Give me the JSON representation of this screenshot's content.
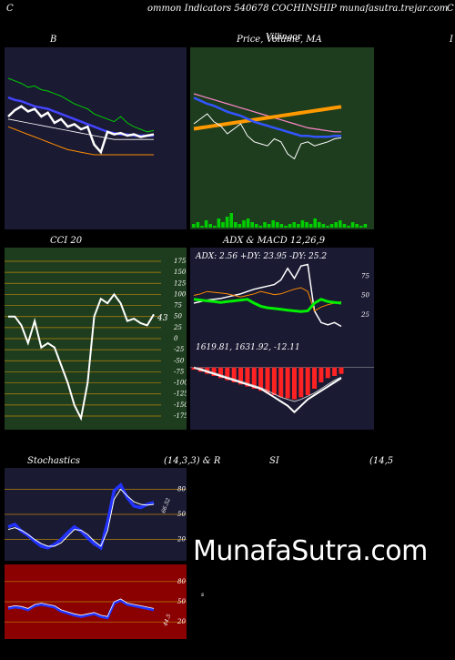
{
  "header": {
    "left": "C",
    "center": "ommon  Indicators 540678  COCHINSHIP munafasutra.trejar.com",
    "right": "C"
  },
  "panels": {
    "bb_title": "B",
    "price_title": "Price,  Volume, MA",
    "price_title_overlay": "Villingor",
    "right_edge": "I",
    "cci_title": "CCI 20",
    "adx_title": "ADX  & MACD 12,26,9",
    "adx_values": "ADX: 2.56   +DY: 23.95 -DY: 25.2",
    "macd_values": "1619.81,   1631.92,   -12.11",
    "stoch_title": "Stochastics",
    "stoch_params": "(14,3,3) & R",
    "rsi_title": "SI",
    "rsi_params": "(14,5",
    "stoch_value": "66.52",
    "rsi_value": "44.5",
    "cci_value": "43",
    "watermark": "MunafaSutra.com",
    "small_marker": "s"
  },
  "colors": {
    "bb_bg": "#1a1a33",
    "price_bg": "#1e3d1e",
    "cci_bg": "#1e3d1e",
    "adx_bg": "#1a1a33",
    "stoch_bg": "#1a1a33",
    "rsi_bg": "#8b0000",
    "gridline": "#b8860b"
  },
  "chart_data": [
    {
      "type": "line",
      "name": "bollinger",
      "title": "B",
      "series": [
        {
          "values": [
            60,
            58,
            56,
            53,
            54,
            51,
            50,
            48,
            46,
            43,
            40,
            38,
            36,
            32,
            30,
            28,
            26,
            30,
            25,
            22,
            20,
            18,
            19
          ]
        },
        {
          "values": [
            45,
            43,
            42,
            40,
            38,
            37,
            36,
            34,
            32,
            30,
            28,
            26,
            24,
            22,
            20,
            18,
            17,
            16,
            16,
            15,
            15,
            15,
            15
          ]
        },
        {
          "values": [
            28,
            27,
            26,
            25,
            24,
            23,
            22,
            21,
            20,
            19,
            18,
            17,
            16,
            15,
            14,
            13,
            12,
            12,
            12,
            12,
            12,
            12,
            12
          ]
        },
        {
          "values": [
            22,
            20,
            18,
            16,
            14,
            12,
            10,
            8,
            6,
            4,
            3,
            2,
            1,
            0,
            0,
            0,
            0,
            0,
            0,
            0,
            0,
            0,
            0
          ]
        },
        {
          "values": [
            30,
            35,
            38,
            34,
            36,
            30,
            33,
            25,
            28,
            22,
            24,
            20,
            22,
            8,
            2,
            18,
            16,
            17,
            15,
            16,
            14,
            15,
            16
          ]
        }
      ]
    },
    {
      "type": "line",
      "name": "price_volume_ma",
      "title": "Price,  Volume, MA",
      "volume": [
        2,
        3,
        1,
        4,
        2,
        1,
        5,
        3,
        6,
        8,
        3,
        2,
        4,
        5,
        3,
        2,
        1,
        3,
        2,
        4,
        3,
        2,
        1,
        2,
        3,
        2,
        4,
        3,
        2,
        5,
        3,
        2,
        1,
        2,
        3,
        4,
        2,
        1,
        3,
        2,
        1,
        2
      ],
      "series": [
        {
          "values": [
            70,
            68,
            66,
            64,
            62,
            60,
            58,
            56,
            54,
            52,
            50,
            48,
            46,
            44,
            42,
            40,
            38,
            36,
            35,
            34,
            33,
            32,
            32
          ]
        },
        {
          "values": [
            35,
            36,
            37,
            38,
            39,
            40,
            41,
            42,
            43,
            44,
            45,
            46,
            47,
            48,
            49,
            50,
            51,
            52,
            53,
            54,
            55,
            56,
            57
          ]
        },
        {
          "values": [
            66,
            63,
            60,
            58,
            55,
            52,
            50,
            48,
            45,
            42,
            40,
            38,
            36,
            34,
            32,
            30,
            28,
            28,
            27,
            27,
            27,
            28,
            28
          ]
        },
        {
          "values": [
            40,
            45,
            50,
            42,
            38,
            30,
            35,
            40,
            28,
            22,
            20,
            18,
            25,
            22,
            10,
            5,
            20,
            22,
            18,
            20,
            22,
            25,
            26
          ]
        }
      ]
    },
    {
      "type": "line",
      "name": "cci",
      "title": "CCI 20",
      "ylim": [
        -175,
        175
      ],
      "ticks": [
        175,
        150,
        125,
        100,
        75,
        50,
        25,
        0,
        -25,
        -50,
        -75,
        -100,
        -125,
        -150,
        -175
      ],
      "values": [
        50,
        50,
        30,
        -10,
        40,
        -20,
        -10,
        -20,
        -60,
        -100,
        -150,
        -180,
        -100,
        50,
        90,
        80,
        100,
        80,
        40,
        45,
        35,
        30,
        55
      ]
    },
    {
      "type": "line",
      "name": "adx",
      "ticks": [
        75,
        50,
        25
      ],
      "values_adx": [
        45,
        44,
        43,
        42,
        41,
        42,
        43,
        44,
        45,
        40,
        36,
        34,
        33,
        32,
        31,
        30,
        29,
        30,
        40,
        45,
        42,
        41,
        40
      ],
      "values_plus": [
        50,
        52,
        55,
        54,
        53,
        52,
        50,
        48,
        50,
        52,
        55,
        53,
        51,
        52,
        55,
        58,
        60,
        55,
        30,
        35,
        38,
        40,
        42
      ],
      "values_minus": [
        40,
        42,
        44,
        45,
        46,
        48,
        50,
        52,
        55,
        58,
        60,
        62,
        64,
        70,
        85,
        72,
        88,
        90,
        30,
        15,
        12,
        15,
        10
      ]
    },
    {
      "type": "bar",
      "name": "macd",
      "values": [
        -2,
        -4,
        -6,
        -8,
        -10,
        -12,
        -14,
        -16,
        -18,
        -20,
        -22,
        -24,
        -26,
        -28,
        -29,
        -30,
        -28,
        -26,
        -20,
        -14,
        -10,
        -8,
        -6
      ],
      "macd_line": [
        0,
        -2,
        -4,
        -6,
        -8,
        -10,
        -12,
        -14,
        -16,
        -18,
        -20,
        -24,
        -28,
        -32,
        -36,
        -42,
        -36,
        -30,
        -26,
        -22,
        -18,
        -14,
        -10
      ],
      "signal_line": [
        0,
        -1,
        -3,
        -5,
        -7,
        -9,
        -11,
        -13,
        -15,
        -17,
        -19,
        -22,
        -25,
        -28,
        -30,
        -32,
        -30,
        -27,
        -24,
        -20,
        -16,
        -12,
        -9
      ]
    },
    {
      "type": "line",
      "name": "stochastics",
      "ticks": [
        80,
        50,
        20
      ],
      "k": [
        35,
        38,
        30,
        25,
        18,
        12,
        10,
        14,
        20,
        28,
        35,
        30,
        22,
        15,
        10,
        40,
        78,
        85,
        70,
        60,
        58,
        62,
        64
      ],
      "d": [
        32,
        34,
        31,
        26,
        20,
        15,
        12,
        12,
        16,
        24,
        32,
        31,
        26,
        18,
        12,
        30,
        68,
        80,
        72,
        65,
        62,
        61,
        62
      ]
    },
    {
      "type": "line",
      "name": "rsi",
      "ticks": [
        80,
        50,
        20
      ],
      "values": [
        40,
        42,
        41,
        38,
        44,
        46,
        44,
        42,
        36,
        33,
        30,
        28,
        30,
        32,
        28,
        26,
        48,
        52,
        46,
        44,
        42,
        40,
        38
      ]
    }
  ]
}
